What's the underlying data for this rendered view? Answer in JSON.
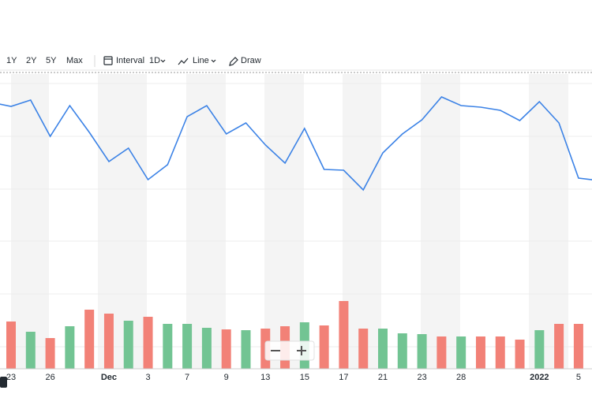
{
  "toolbar": {
    "ranges": [
      "1Y",
      "2Y",
      "5Y",
      "Max"
    ],
    "interval_label": "Interval",
    "interval": "1D",
    "chart_style": "Line",
    "draw": "Draw"
  },
  "chart_data": {
    "type": "line",
    "categories": [
      null,
      "23",
      null,
      "26",
      null,
      null,
      "Dec",
      null,
      "3",
      null,
      "7",
      null,
      "9",
      null,
      "13",
      null,
      "15",
      null,
      "17",
      null,
      "21",
      null,
      "23",
      null,
      "28",
      null,
      null,
      null,
      "2022",
      null,
      "5",
      null
    ],
    "ylim": [
      0,
      370
    ],
    "y2lim": [
      0,
      370
    ],
    "series": [
      {
        "type": "line",
        "color": "#3b82e6",
        "values": [
          338,
          333,
          341,
          295,
          334,
          300,
          263,
          280,
          240,
          259,
          320,
          334,
          298,
          312,
          284,
          261,
          305,
          253,
          252,
          227,
          274,
          298,
          316,
          345,
          334,
          332,
          328,
          315,
          339,
          312,
          242,
          239
        ]
      },
      {
        "type": "bar",
        "axis": "y2",
        "values": [
          null,
          60,
          47,
          39,
          54,
          75,
          70,
          61,
          66,
          57,
          57,
          52,
          50,
          49,
          51,
          54,
          59,
          55,
          86,
          51,
          51,
          45,
          44,
          41,
          41,
          41,
          41,
          37,
          49,
          57,
          57,
          null
        ],
        "colors": [
          null,
          "#f28177",
          "#72c493",
          "#f28177",
          "#72c493",
          "#f28177",
          "#f28177",
          "#72c493",
          "#f28177",
          "#72c493",
          "#72c493",
          "#72c493",
          "#f28177",
          "#72c493",
          "#f28177",
          "#f28177",
          "#72c493",
          "#f28177",
          "#f28177",
          "#f28177",
          "#72c493",
          "#72c493",
          "#72c493",
          "#f28177",
          "#72c493",
          "#f28177",
          "#f28177",
          "#f28177",
          "#72c493",
          "#f28177",
          "#f28177",
          null
        ]
      }
    ]
  }
}
